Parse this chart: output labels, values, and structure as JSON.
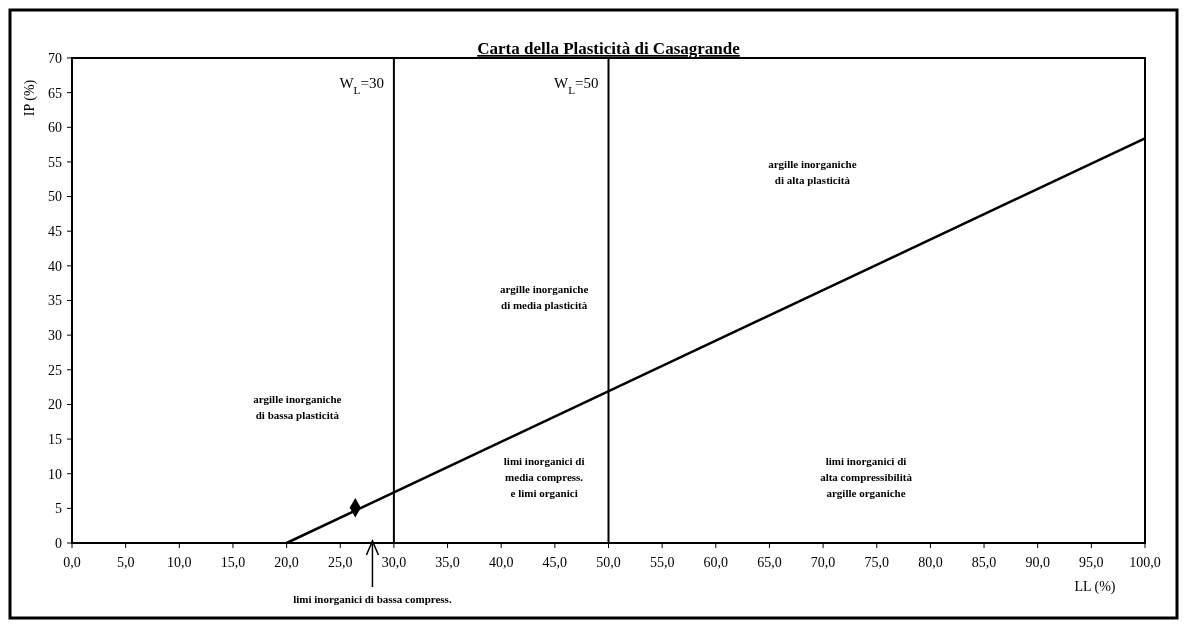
{
  "chart_data": {
    "type": "line",
    "title": "Carta della Plasticità di Casagrande",
    "xlabel": "LL (%)",
    "ylabel": "IP (%)",
    "xlim": [
      0,
      100
    ],
    "ylim": [
      0,
      70
    ],
    "xticks": [
      {
        "value": 0,
        "label": "0,0"
      },
      {
        "value": 5,
        "label": "5,0"
      },
      {
        "value": 10,
        "label": "10,0"
      },
      {
        "value": 15,
        "label": "15,0"
      },
      {
        "value": 20,
        "label": "20,0"
      },
      {
        "value": 25,
        "label": "25,0"
      },
      {
        "value": 30,
        "label": "30,0"
      },
      {
        "value": 35,
        "label": "35,0"
      },
      {
        "value": 40,
        "label": "40,0"
      },
      {
        "value": 45,
        "label": "45,0"
      },
      {
        "value": 50,
        "label": "50,0"
      },
      {
        "value": 55,
        "label": "55,0"
      },
      {
        "value": 60,
        "label": "60,0"
      },
      {
        "value": 65,
        "label": "65,0"
      },
      {
        "value": 70,
        "label": "70,0"
      },
      {
        "value": 75,
        "label": "75,0"
      },
      {
        "value": 80,
        "label": "80,0"
      },
      {
        "value": 85,
        "label": "85,0"
      },
      {
        "value": 90,
        "label": "90,0"
      },
      {
        "value": 95,
        "label": "95,0"
      },
      {
        "value": 100,
        "label": "100,0"
      }
    ],
    "yticks": [
      0,
      5,
      10,
      15,
      20,
      25,
      30,
      35,
      40,
      45,
      50,
      55,
      60,
      65,
      70
    ],
    "grid": false,
    "series": [
      {
        "color": "#000000",
        "x": [
          20,
          100
        ],
        "values": [
          0,
          58.4
        ],
        "marker": "none"
      },
      {
        "type": "scatter",
        "color": "#000000",
        "x": [
          26.4
        ],
        "values": [
          5.1
        ],
        "marker": "diamond"
      }
    ],
    "ref_lines": [
      {
        "axis": "x",
        "value": 30,
        "label": "W$_{L}$=30",
        "color": "#000000"
      },
      {
        "axis": "x",
        "value": 50,
        "label": "W$_{L}$=50",
        "color": "#000000"
      }
    ],
    "annotations": [
      "argille inorganiche\ndi alta plasticità",
      "argille inorganiche\ndi media plasticità",
      "argille inorganiche\ndi bassa plasticità",
      "limi inorganici di\nmedia compress.\ne limi organici",
      "limi inorganici di\nalta compressibilità\nargille organiche",
      "limi inorganici di bassa compress."
    ]
  }
}
